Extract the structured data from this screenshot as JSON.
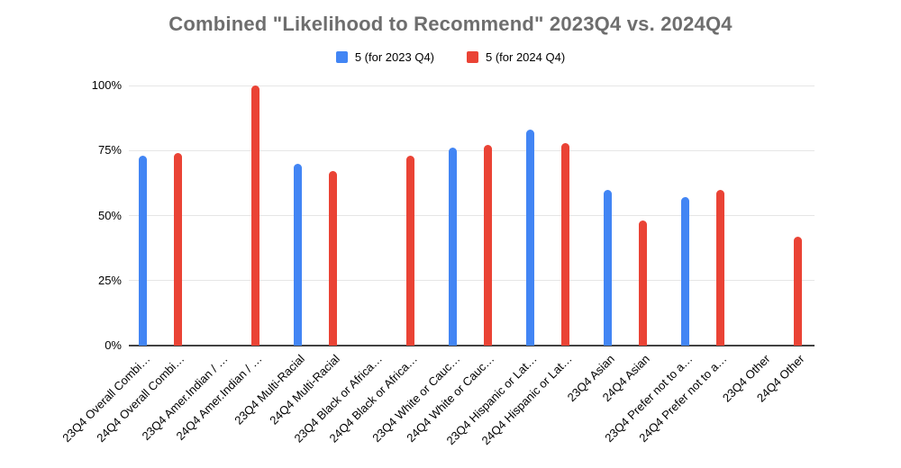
{
  "chart_data": {
    "type": "bar",
    "title": "Combined \"Likelihood to Recommend\" 2023Q4 vs. 2024Q4",
    "legend_position": "top",
    "grid": true,
    "ylim": [
      0,
      100
    ],
    "y_ticks": [
      {
        "value": 0,
        "label": "0%"
      },
      {
        "value": 25,
        "label": "25%"
      },
      {
        "value": 50,
        "label": "50%"
      },
      {
        "value": 75,
        "label": "75%"
      },
      {
        "value": 100,
        "label": "100%"
      }
    ],
    "series": [
      {
        "name": "5 (for 2023 Q4)",
        "color": "#4285F4"
      },
      {
        "name": "5 (for 2024 Q4)",
        "color": "#EA4335"
      }
    ],
    "bars": [
      {
        "category": "23Q4 Overall Combi…",
        "series": 0,
        "value": 73
      },
      {
        "category": "24Q4 Overall Combi…",
        "series": 1,
        "value": 74
      },
      {
        "category": "23Q4 Amer.Indian / …",
        "series": 0,
        "value": null
      },
      {
        "category": "24Q4 Amer.Indian / …",
        "series": 1,
        "value": 100
      },
      {
        "category": "23Q4 Multi-Racial",
        "series": 0,
        "value": 70
      },
      {
        "category": "24Q4 Multi-Racial",
        "series": 1,
        "value": 67
      },
      {
        "category": "23Q4 Black or Africa…",
        "series": 0,
        "value": null
      },
      {
        "category": "24Q4 Black or Africa…",
        "series": 1,
        "value": 73
      },
      {
        "category": "23Q4 White or Cauc…",
        "series": 0,
        "value": 76
      },
      {
        "category": "24Q4 White or Cauc…",
        "series": 1,
        "value": 77
      },
      {
        "category": "23Q4 Hispanic or Lat…",
        "series": 0,
        "value": 83
      },
      {
        "category": "24Q4 Hispanic or Lat…",
        "series": 1,
        "value": 78
      },
      {
        "category": "23Q4 Asian",
        "series": 0,
        "value": 60
      },
      {
        "category": "24Q4 Asian",
        "series": 1,
        "value": 48
      },
      {
        "category": "23Q4 Prefer not to a…",
        "series": 0,
        "value": 57
      },
      {
        "category": "24Q4 Prefer not to a…",
        "series": 1,
        "value": 60
      },
      {
        "category": "23Q4 Other",
        "series": 0,
        "value": null
      },
      {
        "category": "24Q4 Other",
        "series": 1,
        "value": 42
      }
    ],
    "colors": {
      "title": "#6e6e6e",
      "axis_line": "#424242",
      "gridline": "#e6e6e6",
      "label": "#000000",
      "background": "#ffffff"
    }
  }
}
